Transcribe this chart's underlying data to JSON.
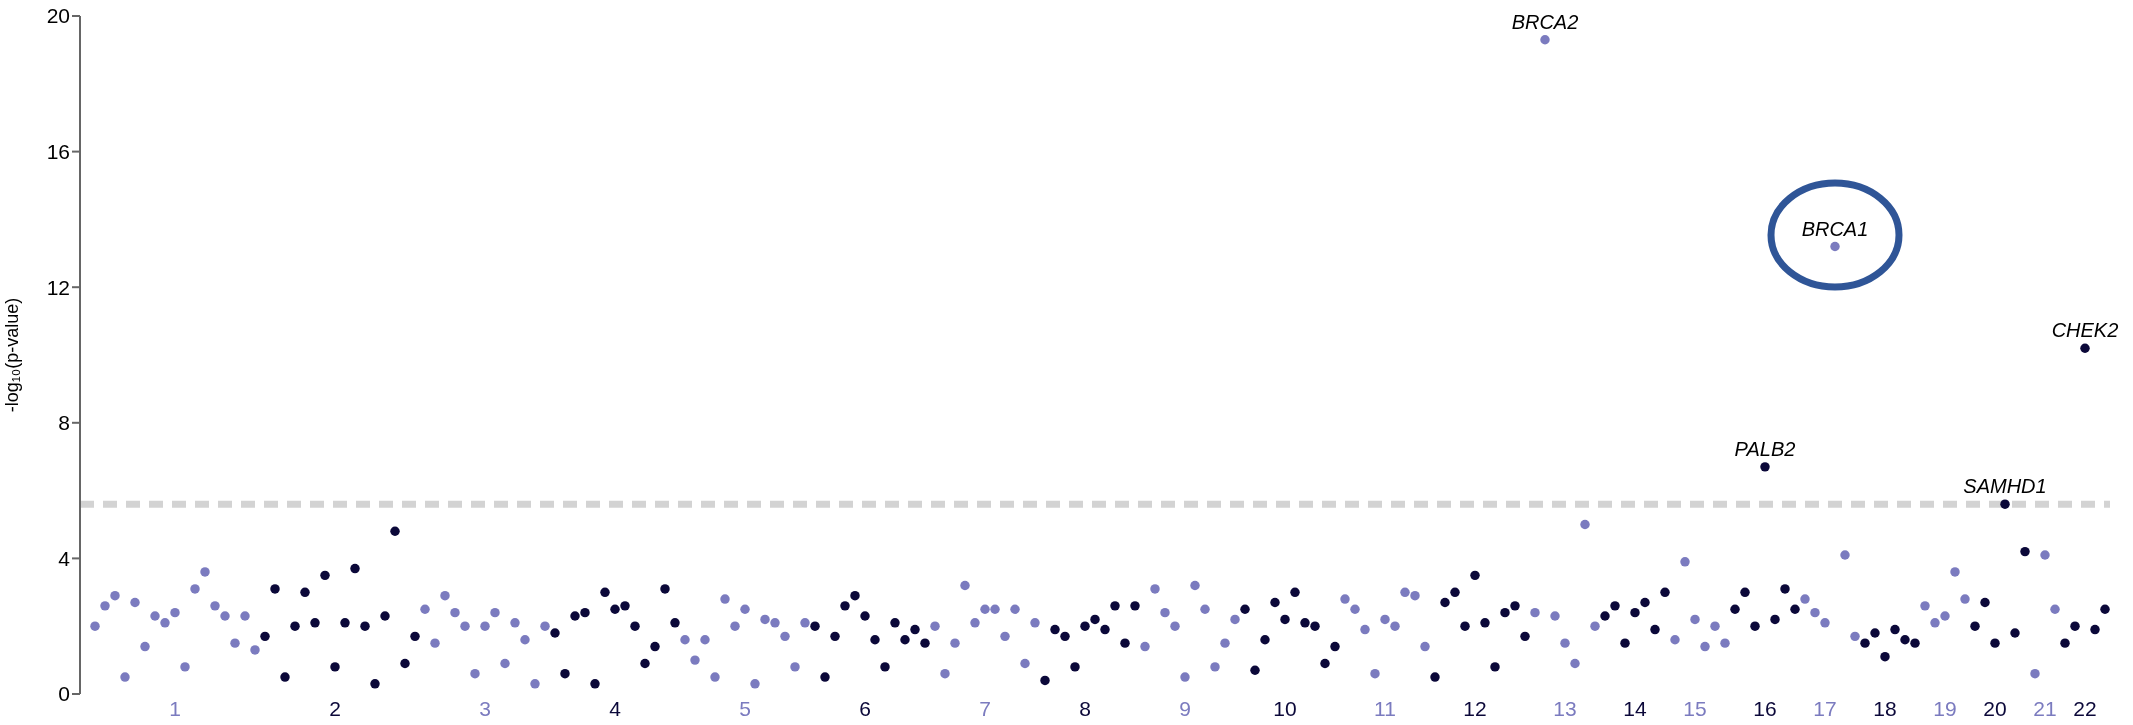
{
  "chart_data": {
    "type": "scatter",
    "ylabel": "-log₁₀(p-value)",
    "marker": "circle",
    "ylim": [
      0,
      20
    ],
    "yticks": [
      0,
      4,
      8,
      12,
      16,
      20
    ],
    "categories": [
      null,
      null,
      null,
      null,
      null,
      null,
      null,
      null,
      null,
      "1",
      null,
      null,
      null,
      null,
      null,
      null,
      null,
      null,
      null,
      null,
      null,
      null,
      null,
      null,
      null,
      "2",
      null,
      null,
      null,
      null,
      null,
      null,
      null,
      null,
      null,
      null,
      null,
      null,
      null,
      null,
      "3",
      null,
      null,
      null,
      null,
      null,
      null,
      null,
      null,
      null,
      null,
      null,
      null,
      "4",
      null,
      null,
      null,
      null,
      null,
      null,
      null,
      null,
      null,
      null,
      null,
      null,
      "5",
      null,
      null,
      null,
      null,
      null,
      null,
      null,
      null,
      null,
      null,
      null,
      "6",
      null,
      null,
      null,
      null,
      null,
      null,
      null,
      null,
      null,
      null,
      null,
      "7",
      null,
      null,
      null,
      null,
      null,
      null,
      null,
      null,
      null,
      "8",
      null,
      null,
      null,
      null,
      null,
      null,
      null,
      null,
      null,
      "9",
      null,
      null,
      null,
      null,
      null,
      null,
      null,
      null,
      null,
      "10",
      null,
      null,
      null,
      null,
      null,
      null,
      null,
      null,
      null,
      "11",
      null,
      null,
      null,
      null,
      null,
      null,
      null,
      null,
      "12",
      null,
      null,
      null,
      null,
      null,
      null,
      null,
      null,
      "13",
      null,
      null,
      null,
      null,
      null,
      null,
      "14",
      null,
      null,
      null,
      null,
      null,
      "15",
      null,
      null,
      null,
      null,
      null,
      null,
      "16",
      null,
      null,
      null,
      null,
      null,
      "17",
      null,
      null,
      null,
      null,
      null,
      "18",
      null,
      null,
      null,
      null,
      null,
      "19",
      null,
      null,
      null,
      null,
      "20",
      null,
      null,
      null,
      null,
      "21",
      null,
      null,
      null,
      "22",
      null,
      null
    ],
    "ref_lines": [
      {
        "axis": "y",
        "value": 5.6,
        "color": "#d3d3d3",
        "line_style": "dashed"
      }
    ],
    "annotations": [
      {
        "text": "BRCA2",
        "y": 19.3
      },
      {
        "text": "BRCA1",
        "y": 13.2
      },
      {
        "text": "CHEK2",
        "y": 10.2
      },
      {
        "text": "PALB2",
        "y": 6.7
      },
      {
        "text": "SAMHD1",
        "y": 5.6
      }
    ],
    "series": [
      {
        "color": "#7b7bbf",
        "values": [
          null,
          2.0,
          2.6,
          2.9,
          0.5,
          2.7,
          1.4,
          2.3,
          2.1,
          2.4,
          0.8,
          3.1,
          3.6,
          2.6,
          2.3,
          1.5,
          2.3,
          1.3,
          null,
          null,
          null,
          null,
          null,
          null,
          null,
          null,
          null,
          null,
          null,
          null,
          null,
          null,
          null,
          null,
          2.5,
          1.5,
          2.9,
          2.4,
          2.0,
          0.6,
          2.0,
          2.4,
          0.9,
          2.1,
          1.6,
          0.3,
          2.0,
          null,
          null,
          null,
          null,
          null,
          null,
          null,
          null,
          null,
          null,
          null,
          null,
          null,
          1.6,
          1.0,
          1.6,
          0.5,
          2.8,
          2.0,
          2.5,
          0.3,
          2.2,
          2.1,
          1.7,
          0.8,
          2.1,
          null,
          null,
          null,
          null,
          null,
          null,
          null,
          null,
          null,
          null,
          null,
          null,
          2.0,
          0.6,
          1.5,
          3.2,
          2.1,
          2.5,
          2.5,
          1.7,
          2.5,
          0.9,
          2.1,
          null,
          null,
          null,
          null,
          null,
          null,
          null,
          null,
          null,
          null,
          1.4,
          3.1,
          2.4,
          2.0,
          0.5,
          3.2,
          2.5,
          0.8,
          1.5,
          2.2,
          null,
          null,
          null,
          null,
          null,
          null,
          null,
          null,
          null,
          null,
          2.8,
          2.5,
          1.9,
          0.6,
          2.2,
          2.0,
          3.0,
          2.9,
          1.4,
          null,
          null,
          null,
          null,
          null,
          null,
          null,
          null,
          null,
          null,
          2.4,
          19.3,
          2.3,
          1.5,
          0.9,
          5.0,
          2.0,
          null,
          null,
          null,
          null,
          null,
          null,
          null,
          1.6,
          3.9,
          2.2,
          1.4,
          2.0,
          1.5,
          null,
          null,
          null,
          null,
          null,
          null,
          null,
          2.8,
          2.4,
          2.1,
          13.2,
          4.1,
          1.7,
          null,
          null,
          null,
          null,
          null,
          null,
          2.6,
          2.1,
          2.3,
          3.6,
          2.8,
          null,
          null,
          null,
          null,
          null,
          null,
          0.6,
          4.1,
          2.5,
          null,
          null,
          null,
          null,
          null
        ]
      },
      {
        "color": "#0b0839",
        "values": [
          null,
          null,
          null,
          null,
          null,
          null,
          null,
          null,
          null,
          null,
          null,
          null,
          null,
          null,
          null,
          null,
          null,
          null,
          1.7,
          3.1,
          0.5,
          2.0,
          3.0,
          2.1,
          3.5,
          0.8,
          2.1,
          3.7,
          2.0,
          0.3,
          2.3,
          4.8,
          0.9,
          1.7,
          null,
          null,
          null,
          null,
          null,
          null,
          null,
          null,
          null,
          null,
          null,
          null,
          null,
          1.8,
          0.6,
          2.3,
          2.4,
          0.3,
          3.0,
          2.5,
          2.6,
          2.0,
          0.9,
          1.4,
          3.1,
          2.1,
          null,
          null,
          null,
          null,
          null,
          null,
          null,
          null,
          null,
          null,
          null,
          null,
          null,
          2.0,
          0.5,
          1.7,
          2.6,
          2.9,
          2.3,
          1.6,
          0.8,
          2.1,
          1.6,
          1.9,
          1.5,
          null,
          null,
          null,
          null,
          null,
          null,
          null,
          null,
          null,
          null,
          null,
          0.4,
          1.9,
          1.7,
          0.8,
          2.0,
          2.2,
          1.9,
          2.6,
          1.5,
          2.6,
          null,
          null,
          null,
          null,
          null,
          null,
          null,
          null,
          null,
          null,
          2.5,
          0.7,
          1.6,
          2.7,
          2.2,
          3.0,
          2.1,
          2.0,
          0.9,
          1.4,
          null,
          null,
          null,
          null,
          null,
          null,
          null,
          null,
          null,
          0.5,
          2.7,
          3.0,
          2.0,
          3.5,
          2.1,
          0.8,
          2.4,
          2.6,
          1.7,
          null,
          null,
          null,
          null,
          null,
          null,
          null,
          2.3,
          2.6,
          1.5,
          2.4,
          2.7,
          1.9,
          3.0,
          null,
          null,
          null,
          null,
          null,
          null,
          2.5,
          3.0,
          2.0,
          6.7,
          2.2,
          3.1,
          2.5,
          null,
          null,
          null,
          null,
          null,
          null,
          1.5,
          1.8,
          1.1,
          1.9,
          1.6,
          1.5,
          null,
          null,
          null,
          null,
          null,
          2.0,
          2.7,
          1.5,
          5.6,
          1.8,
          4.2,
          null,
          null,
          null,
          1.5,
          2.0,
          10.2,
          1.9,
          2.5
        ]
      }
    ]
  }
}
